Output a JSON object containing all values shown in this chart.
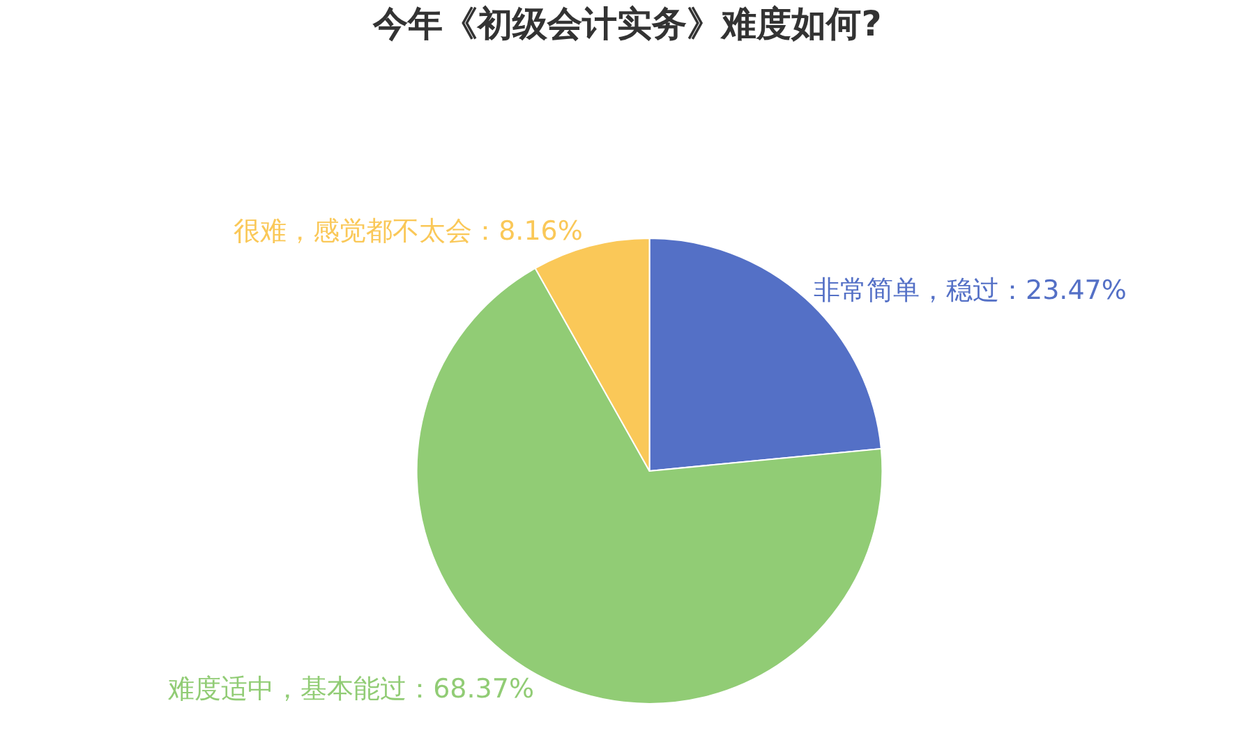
{
  "chart_data": {
    "type": "pie",
    "title": "今年《初级会计实务》难度如何?",
    "categories": [
      "非常简单，稳过",
      "难度适中，基本能过",
      "很难，感觉都不太会"
    ],
    "values": [
      23.47,
      68.37,
      8.16
    ],
    "colors": [
      "#5470c6",
      "#91cc75",
      "#fac858"
    ],
    "value_labels": [
      "23.47%",
      "68.37%",
      "8.16%"
    ],
    "legend": false
  }
}
